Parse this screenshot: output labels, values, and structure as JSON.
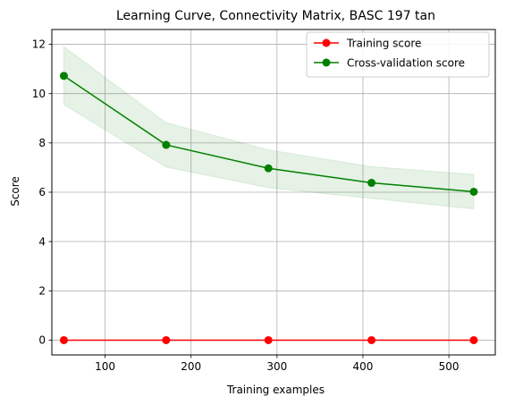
{
  "chart_data": {
    "type": "line",
    "title": "Learning Curve, Connectivity Matrix, BASC 197 tan",
    "xlabel": "Training examples",
    "ylabel": "Score",
    "xlim": [
      38,
      554
    ],
    "ylim": [
      -0.6,
      12.6
    ],
    "xticks": [
      100,
      200,
      300,
      400,
      500
    ],
    "yticks": [
      0,
      2,
      4,
      6,
      8,
      10,
      12
    ],
    "grid": true,
    "legend_position": "upper-right",
    "x": [
      52,
      171,
      290,
      410,
      529
    ],
    "series": [
      {
        "name": "Training score",
        "color": "#ff0000",
        "marker": "circle",
        "values": [
          0,
          0,
          0,
          0,
          0
        ],
        "band_lower": [
          0,
          0,
          0,
          0,
          0
        ],
        "band_upper": [
          0,
          0,
          0,
          0,
          0
        ],
        "band_color": "#ff0000"
      },
      {
        "name": "Cross-validation score",
        "color": "#008000",
        "marker": "circle",
        "values": [
          10.72,
          7.92,
          6.97,
          6.38,
          6.02
        ],
        "band_lower": [
          9.55,
          7.02,
          6.18,
          5.75,
          5.32
        ],
        "band_upper": [
          11.9,
          8.82,
          7.72,
          7.04,
          6.72
        ],
        "band_color": "#008000"
      }
    ]
  }
}
